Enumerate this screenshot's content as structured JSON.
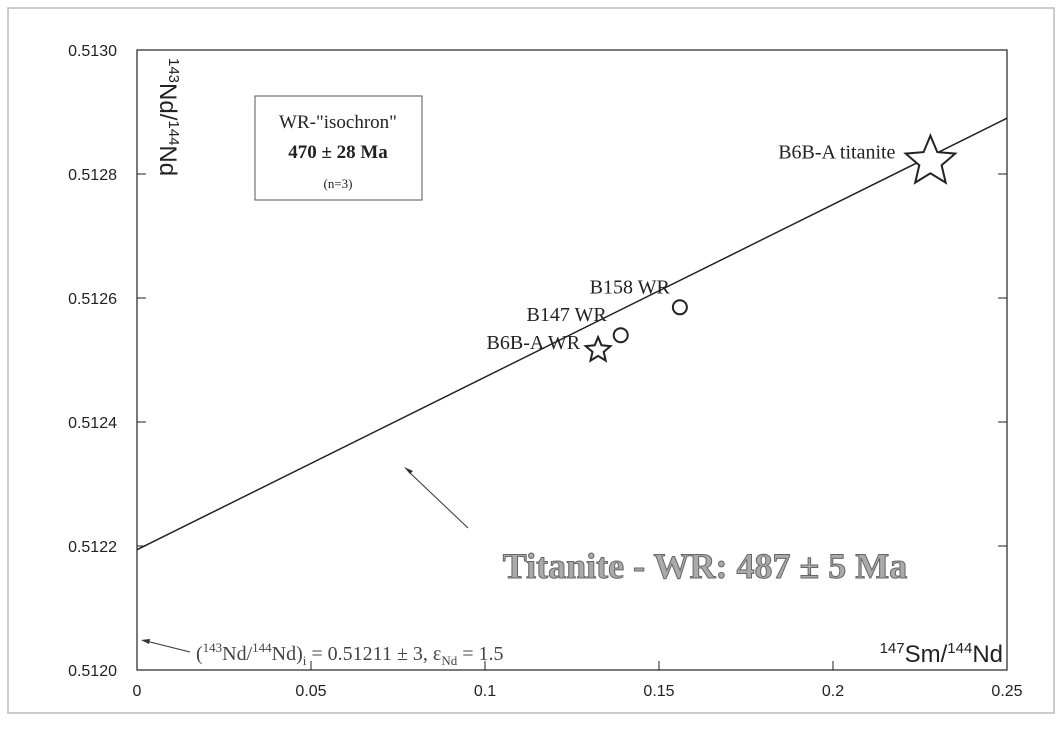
{
  "chart_data": {
    "type": "scatter",
    "x_label": [
      "147",
      "Sm/",
      "144",
      "Nd"
    ],
    "y_label": [
      "143",
      "Nd/",
      "144",
      "Nd"
    ],
    "xlim": [
      0,
      0.25
    ],
    "ylim": [
      0.512,
      0.513
    ],
    "xticks": [
      0,
      0.05,
      0.1,
      0.15,
      0.2,
      0.25
    ],
    "yticks": [
      {
        "value": 0.512,
        "label": "0.5120"
      },
      0.5122,
      0.5124,
      0.5126,
      0.5128,
      {
        "value": 0.513,
        "label": "0.5130"
      }
    ],
    "points": [
      {
        "label": "B6B-A titanite",
        "x": 0.228,
        "y": 0.51282,
        "marker": "star",
        "marker_size": 26
      },
      {
        "label": "B158 WR",
        "x": 0.156,
        "y": 0.512585,
        "marker": "circle",
        "marker_size": 7
      },
      {
        "label": "B147 WR",
        "x": 0.139,
        "y": 0.51254,
        "marker": "circle",
        "marker_size": 7
      },
      {
        "label": "B6B-A WR",
        "x": 0.1325,
        "y": 0.512516,
        "marker": "star",
        "marker_size": 13
      }
    ],
    "isochron_line": {
      "x": [
        0,
        0.25
      ],
      "y": [
        0.512194,
        0.51289
      ]
    },
    "box_annotation": [
      "WR-\"isochron\"",
      "470 ± 28 Ma",
      "(n=3)"
    ],
    "age_annotation": "Titanite - WR: 487 ± 5 Ma",
    "initial_ratio_annotation": [
      "(",
      "143",
      "Nd/",
      "144",
      "Nd)",
      "i",
      " = 0.51211 ± 3, ε",
      "Nd",
      " = 1.5"
    ]
  }
}
